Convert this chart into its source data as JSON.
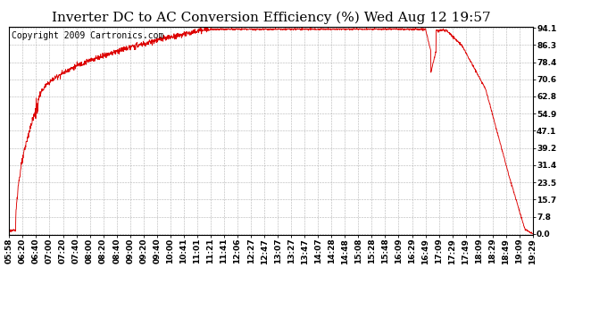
{
  "title": "Inverter DC to AC Conversion Efficiency (%) Wed Aug 12 19:57",
  "copyright": "Copyright 2009 Cartronics.com",
  "line_color": "#dd0000",
  "background_color": "#ffffff",
  "plot_bg_color": "#ffffff",
  "grid_color": "#aaaaaa",
  "yticks": [
    0.0,
    7.8,
    15.7,
    23.5,
    31.4,
    39.2,
    47.1,
    54.9,
    62.8,
    70.6,
    78.4,
    86.3,
    94.1
  ],
  "xtick_labels": [
    "05:58",
    "06:20",
    "06:40",
    "07:00",
    "07:20",
    "07:40",
    "08:00",
    "08:20",
    "08:40",
    "09:00",
    "09:20",
    "09:40",
    "10:00",
    "10:41",
    "11:01",
    "11:21",
    "11:41",
    "12:06",
    "12:27",
    "12:47",
    "13:07",
    "13:27",
    "13:47",
    "14:07",
    "14:28",
    "14:48",
    "15:08",
    "15:28",
    "15:48",
    "16:09",
    "16:29",
    "16:49",
    "17:09",
    "17:29",
    "17:49",
    "18:09",
    "18:29",
    "18:49",
    "19:09",
    "19:29"
  ],
  "title_fontsize": 11,
  "copyright_fontsize": 7,
  "tick_fontsize": 6.5,
  "ymax": 94.6
}
